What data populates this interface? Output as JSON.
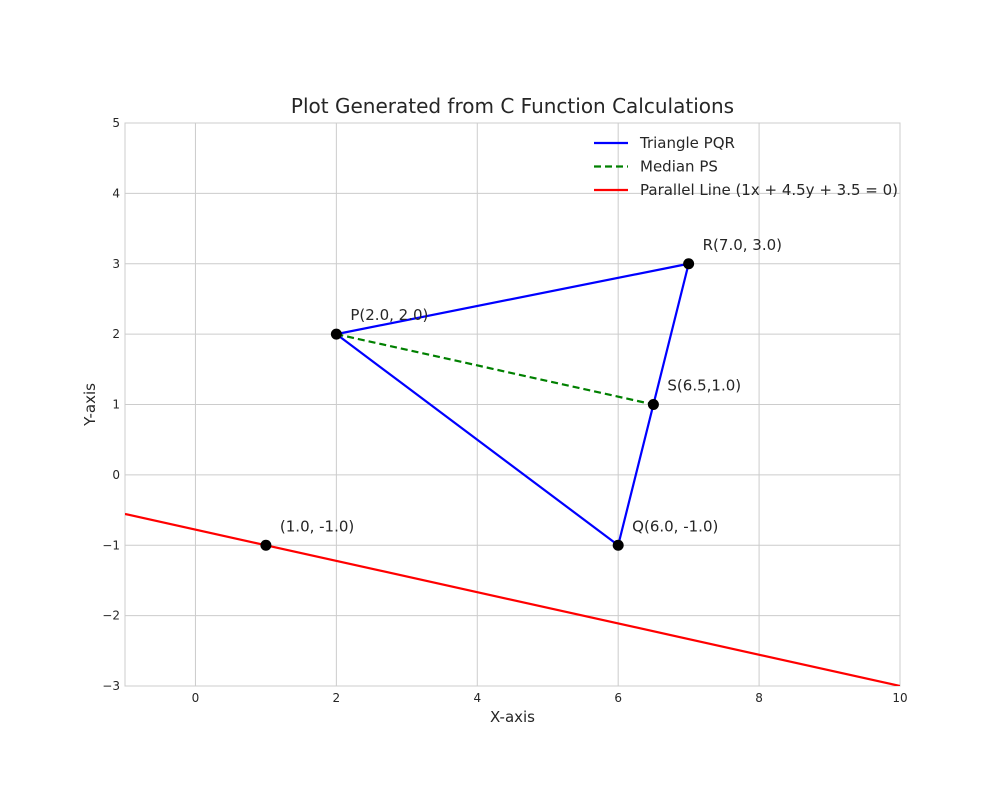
{
  "chart_data": {
    "type": "line",
    "title": "Plot Generated from C Function Calculations",
    "xlabel": "X-axis",
    "ylabel": "Y-axis",
    "xlim": [
      -1,
      10
    ],
    "ylim": [
      -3,
      5
    ],
    "xticks": [
      0,
      2,
      4,
      6,
      8,
      10
    ],
    "yticks": [
      -3,
      -2,
      -1,
      0,
      1,
      2,
      3,
      4,
      5
    ],
    "grid": true,
    "legend_position": "upper-right",
    "series": [
      {
        "name": "Triangle PQR",
        "style": "solid",
        "color": "#0000ff",
        "points": [
          [
            2,
            2
          ],
          [
            6,
            -1
          ],
          [
            7,
            3
          ],
          [
            2,
            2
          ]
        ]
      },
      {
        "name": "Median PS",
        "style": "dashed",
        "color": "#008000",
        "points": [
          [
            2,
            2
          ],
          [
            6.5,
            1
          ]
        ]
      },
      {
        "name": "Parallel Line (1x + 4.5y + 3.5 = 0)",
        "style": "solid",
        "color": "#ff0000",
        "points": [
          [
            -1,
            -0.5556
          ],
          [
            10,
            -3
          ]
        ]
      }
    ],
    "markers": [
      {
        "x": 2,
        "y": 2,
        "label": "P(2.0, 2.0)"
      },
      {
        "x": 6,
        "y": -1,
        "label": "Q(6.0, -1.0)"
      },
      {
        "x": 7,
        "y": 3,
        "label": "R(7.0, 3.0)"
      },
      {
        "x": 6.5,
        "y": 1,
        "label": "S(6.5,1.0)"
      },
      {
        "x": 1,
        "y": -1,
        "label": "(1.0, -1.0)"
      }
    ],
    "tick_labels_x": [
      "0",
      "2",
      "4",
      "6",
      "8",
      "10"
    ],
    "tick_labels_y": [
      "−3",
      "−2",
      "−1",
      "0",
      "1",
      "2",
      "3",
      "4",
      "5"
    ]
  }
}
